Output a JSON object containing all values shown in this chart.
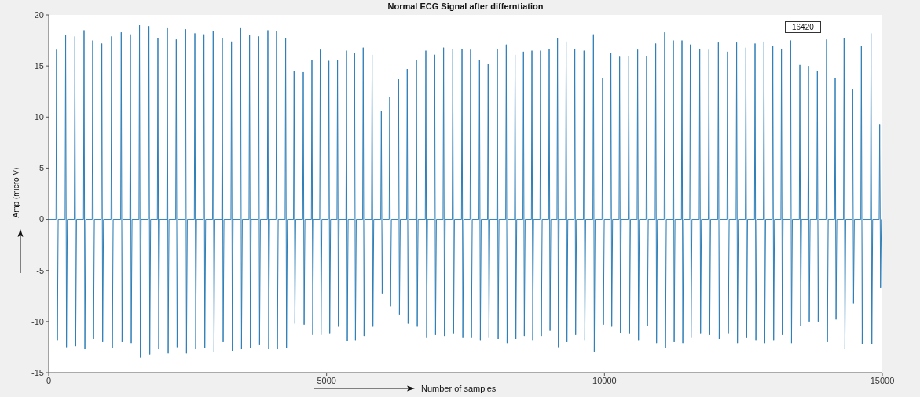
{
  "chart_data": {
    "type": "line",
    "title": "Normal ECG Signal after differntiation",
    "xlabel": "Number of samples",
    "ylabel": "Amp (micro V)",
    "annotations": [
      "16420"
    ],
    "xlim": [
      0,
      15000
    ],
    "xticks": [
      0,
      5000,
      10000,
      15000
    ],
    "ylim": [
      -15,
      20
    ],
    "yticks": [
      -15,
      -10,
      -5,
      0,
      5,
      10,
      15,
      20
    ],
    "line_style": "solid",
    "x": [
      0,
      131,
      141,
      156,
      171,
      295,
      305,
      320,
      335,
      461,
      471,
      486,
      501,
      626,
      636,
      651,
      666,
      782,
      792,
      807,
      822,
      946,
      956,
      971,
      986,
      1121,
      1131,
      1146,
      1161,
      1295,
      1305,
      1320,
      1335,
      1460,
      1470,
      1485,
      1500,
      1624,
      1634,
      1649,
      1664,
      1794,
      1804,
      1819,
      1834,
      1955,
      1965,
      1980,
      1995,
      2125,
      2135,
      2150,
      2165,
      2285,
      2295,
      2310,
      2325,
      2454,
      2464,
      2479,
      2494,
      2620,
      2630,
      2645,
      2660,
      2784,
      2794,
      2809,
      2824,
      2949,
      2959,
      2974,
      2989,
      3114,
      3124,
      3139,
      3154,
      3279,
      3289,
      3304,
      3319,
      3444,
      3454,
      3469,
      3484,
      3604,
      3614,
      3629,
      3644,
      3769,
      3779,
      3794,
      3809,
      3934,
      3944,
      3959,
      3974,
      4090,
      4100,
      4115,
      4130,
      4254,
      4264,
      4279,
      4294,
      4405,
      4415,
      4430,
      4445,
      4571,
      4581,
      4596,
      4611,
      4726,
      4736,
      4751,
      4766,
      4876,
      4886,
      4901,
      4916,
      5032,
      5042,
      5057,
      5072,
      5187,
      5197,
      5212,
      5227,
      5348,
      5358,
      5373,
      5388,
      5494,
      5504,
      5519,
      5534,
      5649,
      5659,
      5674,
      5689,
      5809,
      5819,
      5834,
      5849,
      5975,
      5985,
      6000,
      6015,
      6126,
      6136,
      6151,
      6166,
      6286,
      6296,
      6311,
      6326,
      6441,
      6451,
      6466,
      6481,
      6607,
      6617,
      6632,
      6647,
      6776,
      6786,
      6801,
      6816,
      6936,
      6946,
      6961,
      6976,
      7096,
      7106,
      7121,
      7136,
      7261,
      7271,
      7286,
      7301,
      7427,
      7437,
      7452,
      7467,
      7582,
      7592,
      7607,
      7622,
      7742,
      7752,
      7767,
      7782,
      7897,
      7907,
      7922,
      7937,
      8063,
      8073,
      8088,
      8103,
      8223,
      8233,
      8248,
      8263,
      8382,
      8392,
      8407,
      8422,
      8533,
      8543,
      8558,
      8573,
      8685,
      8695,
      8710,
      8725,
      8840,
      8850,
      8865,
      8880,
      8996,
      9006,
      9021,
      9036,
      9146,
      9156,
      9171,
      9186,
      9301,
      9311,
      9326,
      9341,
      9457,
      9467,
      9482,
      9497,
      9622,
      9632,
      9647,
      9662,
      9792,
      9802,
      9817,
      9832,
      9957,
      9967,
      9982,
      9997,
      10107,
      10117,
      10132,
      10147,
      10263,
      10273,
      10288,
      10303,
      10428,
      10438,
      10453,
      10468,
      10588,
      10598,
      10613,
      10628,
      10749,
      10759,
      10774,
      10789,
      10913,
      10923,
      10938,
      10953,
      11074,
      11084,
      11099,
      11114,
      11230,
      11240,
      11255,
      11270,
      11385,
      11395,
      11410,
      11425,
      11535,
      11545,
      11560,
      11575,
      11705,
      11715,
      11730,
      11745,
      11870,
      11880,
      11895,
      11910,
      12040,
      12050,
      12065,
      12080,
      12205,
      12215,
      12230,
      12245,
      12369,
      12379,
      12394,
      12409,
      12535,
      12545,
      12560,
      12575,
      12700,
      12710,
      12725,
      12740,
      12860,
      12870,
      12885,
      12900,
      13020,
      13030,
      13045,
      13060,
      13175,
      13185,
      13200,
      13215,
      13341,
      13351,
      13366,
      13381,
      13506,
      13516,
      13531,
      13546,
      13661,
      13671,
      13686,
      13701,
      13821,
      13831,
      13846,
      13861,
      13987,
      13997,
      14012,
      14027,
      14142,
      14152,
      14167,
      14182,
      14302,
      14312,
      14327,
      14342,
      14457,
      14467,
      14482,
      14497,
      14613,
      14623,
      14638,
      14653,
      14787,
      14797,
      14812,
      14827,
      14943,
      14953,
      14968,
      14983,
      15000
    ],
    "series": [
      {
        "color": "#2f7fb8",
        "values": [
          0,
          0,
          16.6,
          -11.8,
          0,
          0,
          18.0,
          -12.5,
          0,
          0,
          17.9,
          -12.4,
          0,
          0,
          18.5,
          -12.7,
          0,
          0,
          17.5,
          -11.7,
          0,
          0,
          17.2,
          -12.0,
          0,
          0,
          17.9,
          -12.6,
          0,
          0,
          18.3,
          -12.0,
          0,
          0,
          18.1,
          -12.1,
          0,
          0,
          19.0,
          -13.5,
          0,
          0,
          18.9,
          -13.2,
          0,
          0,
          17.7,
          -12.7,
          0,
          0,
          18.7,
          -13.1,
          0,
          0,
          17.6,
          -12.5,
          0,
          0,
          18.6,
          -13.1,
          0,
          0,
          18.2,
          -12.7,
          0,
          0,
          18.1,
          -12.6,
          0,
          0,
          18.4,
          -13.0,
          0,
          0,
          17.7,
          -12.0,
          0,
          0,
          17.4,
          -12.9,
          0,
          0,
          18.7,
          -12.7,
          0,
          0,
          18.0,
          -12.6,
          0,
          0,
          17.9,
          -12.3,
          0,
          0,
          18.5,
          -12.7,
          0,
          0,
          18.4,
          -12.7,
          0,
          0,
          17.7,
          -12.6,
          0,
          0,
          14.5,
          -10.2,
          0,
          0,
          14.4,
          -10.3,
          0,
          0,
          15.6,
          -11.3,
          0,
          0,
          16.6,
          -11.3,
          0,
          0,
          15.5,
          -11.2,
          0,
          0,
          15.6,
          -10.5,
          0,
          0,
          16.5,
          -11.9,
          0,
          0,
          16.3,
          -11.8,
          0,
          0,
          16.8,
          -11.4,
          0,
          0,
          16.1,
          -10.5,
          0,
          0,
          10.6,
          -7.3,
          0,
          0,
          12.0,
          -8.5,
          0,
          0,
          13.7,
          -9.3,
          0,
          0,
          14.7,
          -10.2,
          0,
          0,
          15.6,
          -10.5,
          0,
          0,
          16.5,
          -11.6,
          0,
          0,
          16.1,
          -11.3,
          0,
          0,
          16.8,
          -11.4,
          0,
          0,
          16.7,
          -11.2,
          0,
          0,
          16.7,
          -11.6,
          0,
          0,
          16.6,
          -11.6,
          0,
          0,
          15.6,
          -11.8,
          0,
          0,
          15.2,
          -11.6,
          0,
          0,
          16.7,
          -11.7,
          0,
          0,
          17.1,
          -12.1,
          0,
          0,
          16.1,
          -11.7,
          0,
          0,
          16.4,
          -11.4,
          0,
          0,
          16.5,
          -11.8,
          0,
          0,
          16.5,
          -11.4,
          0,
          0,
          16.7,
          -10.9,
          0,
          0,
          17.7,
          -12.5,
          0,
          0,
          17.4,
          -12.0,
          0,
          0,
          16.7,
          -11.3,
          0,
          0,
          16.5,
          -11.8,
          0,
          0,
          18.1,
          -13.0,
          0,
          0,
          13.8,
          -10.3,
          0,
          0,
          16.3,
          -10.5,
          0,
          0,
          15.9,
          -11.1,
          0,
          0,
          16.0,
          -11.2,
          0,
          0,
          16.6,
          -11.8,
          0,
          0,
          16.0,
          -10.4,
          0,
          0,
          17.2,
          -12.1,
          0,
          0,
          18.3,
          -12.6,
          0,
          0,
          17.5,
          -12.0,
          0,
          0,
          17.5,
          -12.1,
          0,
          0,
          17.1,
          -11.6,
          0,
          0,
          16.7,
          -11.2,
          0,
          0,
          16.6,
          -11.3,
          0,
          0,
          17.3,
          -11.7,
          0,
          0,
          16.4,
          -11.2,
          0,
          0,
          17.3,
          -12.1,
          0,
          0,
          16.8,
          -11.6,
          0,
          0,
          17.2,
          -11.8,
          0,
          0,
          17.4,
          -12.1,
          0,
          0,
          17.0,
          -11.8,
          0,
          0,
          16.7,
          -11.3,
          0,
          0,
          17.5,
          -12.1,
          0,
          0,
          15.1,
          -10.4,
          0,
          0,
          15.0,
          -10.0,
          0,
          0,
          14.5,
          -10.0,
          0,
          0,
          17.6,
          -12.0,
          0,
          0,
          13.8,
          -9.8,
          0,
          0,
          17.7,
          -12.7,
          0,
          0,
          12.7,
          -8.2,
          0,
          0,
          17.0,
          -12.2,
          0,
          0,
          18.2,
          -12.2,
          0,
          0,
          9.3,
          -6.7,
          0,
          0
        ]
      }
    ]
  }
}
